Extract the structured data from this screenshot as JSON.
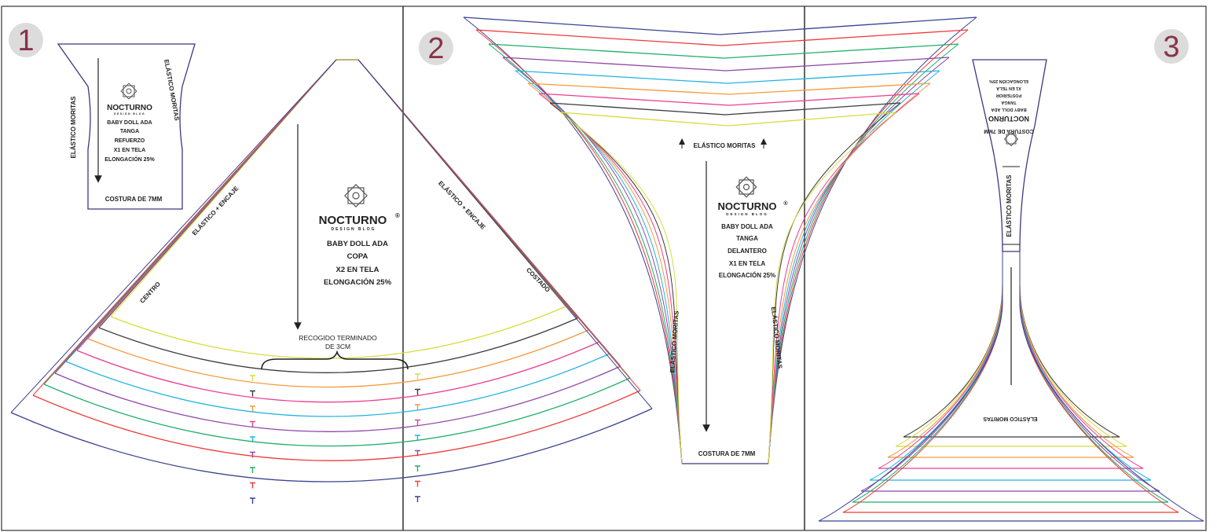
{
  "brand": {
    "name": "NOCTURNO",
    "reg": "®",
    "tagline": "DESIGN BLOG"
  },
  "panels": [
    {
      "number": "1"
    },
    {
      "number": "2"
    },
    {
      "number": "3"
    }
  ],
  "size_colors": [
    "#d7dc3c",
    "#3a3a3a",
    "#f6993b",
    "#ec3f8f",
    "#22b3e0",
    "#8e47a8",
    "#1faf69",
    "#ee3a3a",
    "#3b4192"
  ],
  "outline_color": "#41357f",
  "pieces": {
    "refuerzo": {
      "lines": [
        "BABY DOLL ADA",
        "TANGA",
        "REFUERZO",
        "X1 EN TELA",
        "ELONGACIÓN 25%"
      ],
      "left_label": "ELÁSTICO MORITAS",
      "right_label": "ELÁSTICO MORITAS",
      "bottom_label": "COSTURA DE 7MM"
    },
    "copa": {
      "lines": [
        "BABY DOLL ADA",
        "COPA",
        "X2 EN TELA",
        "ELONGACIÓN 25%"
      ],
      "left_edge": "ELÁSTICO + ENCAJE",
      "right_edge": "ELÁSTICO + ENCAJE",
      "centro": "CENTRO",
      "costado": "COSTADO",
      "gather_line1": "RECOGIDO TERMINADO",
      "gather_line2": "DE 3CM"
    },
    "delantero": {
      "lines": [
        "BABY DOLL ADA",
        "TANGA",
        "DELANTERO",
        "X1 EN TELA",
        "ELONGACIÓN 25%"
      ],
      "top_label": "ELÁSTICO MORITAS",
      "left_label": "ELÁSTICO MORITAS",
      "right_label": "ELÁSTICO MORITAS",
      "bottom_label": "COSTURA DE 7MM"
    },
    "posterior": {
      "lines": [
        "BABY DOLL ADA",
        "TANGA",
        "POSTERIOR",
        "X1 EN TELA",
        "ELONGACIÓN 25%"
      ],
      "top_label": "COSTURA DE 7MM",
      "side_label": "ELÁSTICO MORITAS",
      "bottom_label": "ELÁSTICO MORITAS"
    }
  }
}
